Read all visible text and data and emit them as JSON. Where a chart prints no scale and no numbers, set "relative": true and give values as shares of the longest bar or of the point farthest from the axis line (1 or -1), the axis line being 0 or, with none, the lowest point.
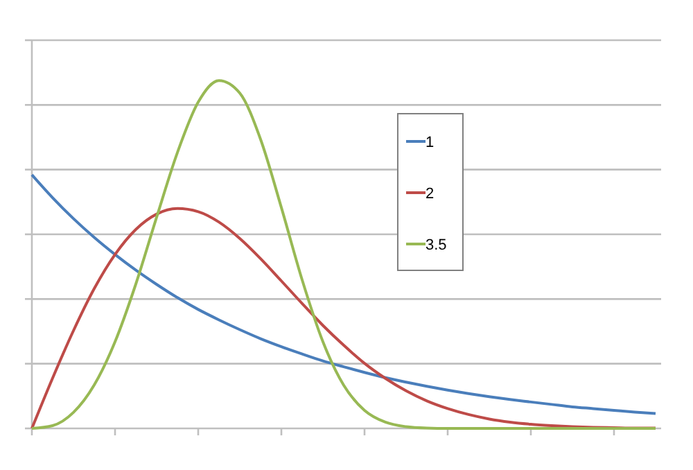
{
  "chart_data": {
    "type": "line",
    "relative": true,
    "grid": "y",
    "legend": "right",
    "line_style": "solid",
    "marker": "none",
    "categories": [
      null,
      null,
      null,
      null,
      null,
      null,
      null,
      null,
      null,
      null,
      null,
      null,
      null,
      null,
      null,
      null,
      null,
      null,
      null,
      null,
      null,
      null,
      null,
      null,
      null,
      null,
      null,
      null,
      null,
      null,
      null
    ],
    "series": [
      {
        "name": "1",
        "color": "#4a7ebb",
        "values": [
          0.729,
          0.663,
          0.603,
          0.549,
          0.5,
          0.455,
          0.414,
          0.376,
          0.342,
          0.312,
          0.284,
          0.258,
          0.235,
          0.214,
          0.194,
          0.177,
          0.161,
          0.146,
          0.133,
          0.121,
          0.11,
          0.1,
          0.091,
          0.083,
          0.076,
          0.069,
          0.062,
          0.057,
          0.052,
          0.047,
          0.043
        ]
      },
      {
        "name": "2",
        "color": "#be4b48",
        "values": [
          0,
          0.145,
          0.281,
          0.402,
          0.5,
          0.572,
          0.616,
          0.632,
          0.623,
          0.593,
          0.546,
          0.488,
          0.424,
          0.359,
          0.296,
          0.239,
          0.187,
          0.144,
          0.108,
          0.079,
          0.057,
          0.04,
          0.027,
          0.018,
          0.012,
          0.008,
          0.005,
          0.003,
          0.002,
          0.001,
          0.001
        ]
      },
      {
        "name": "3.5",
        "color": "#98b954",
        "values": [
          0,
          0.008,
          0.046,
          0.125,
          0.249,
          0.415,
          0.607,
          0.793,
          0.938,
          1,
          0.964,
          0.831,
          0.635,
          0.427,
          0.249,
          0.124,
          0.052,
          0.018,
          0.005,
          0.001,
          0,
          0,
          0,
          0,
          0,
          0,
          0,
          0,
          0,
          0,
          0
        ]
      }
    ]
  }
}
